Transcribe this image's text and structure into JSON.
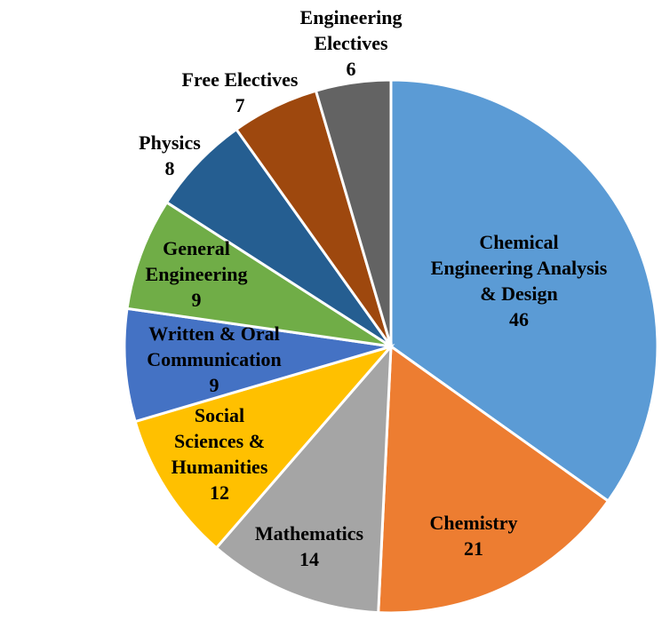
{
  "chart_data": {
    "type": "pie",
    "title": "",
    "slices": [
      {
        "lines": [
          "Chemical",
          "Engineering Analysis",
          "& Design"
        ],
        "value": 46,
        "value_label": "46",
        "color": "#5B9BD5"
      },
      {
        "lines": [
          "Chemistry"
        ],
        "value": 21,
        "value_label": "21",
        "color": "#ED7D31"
      },
      {
        "lines": [
          "Mathematics"
        ],
        "value": 14,
        "value_label": "14",
        "color": "#A5A5A5"
      },
      {
        "lines": [
          "Social",
          "Sciences &",
          "Humanities"
        ],
        "value": 12,
        "value_label": "12",
        "color": "#FFC000"
      },
      {
        "lines": [
          "Written & Oral",
          "Communication"
        ],
        "value": 9,
        "value_label": "9",
        "color": "#4472C4"
      },
      {
        "lines": [
          "General",
          "Engineering"
        ],
        "value": 9,
        "value_label": "9",
        "color": "#70AD47"
      },
      {
        "lines": [
          "Physics"
        ],
        "value": 8,
        "value_label": "8",
        "color": "#255E91"
      },
      {
        "lines": [
          "Free Electives"
        ],
        "value": 7,
        "value_label": "7",
        "color": "#9E480E"
      },
      {
        "lines": [
          "Engineering",
          "Electives"
        ],
        "value": 6,
        "value_label": "6",
        "color": "#636363"
      }
    ],
    "legend": "none",
    "labels_position": "inside-and-outside"
  }
}
